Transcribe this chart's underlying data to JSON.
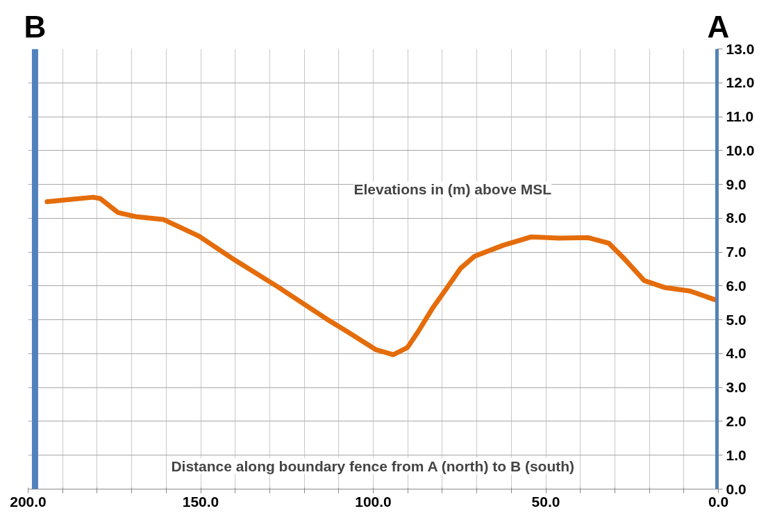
{
  "chart_data": {
    "type": "line",
    "x": [
      194.5,
      181.2,
      179.1,
      174,
      168.9,
      160.7,
      150.5,
      140.2,
      127.9,
      113.6,
      107.5,
      99.3,
      94.2,
      90.1,
      87,
      82.9,
      78.8,
      74.7,
      70.6,
      62.4,
      54.2,
      46.1,
      37.9,
      31.7,
      27.6,
      21.5,
      15.4,
      8.2,
      0
    ],
    "series": [
      {
        "color": "#e46c0a",
        "values": [
          8.49,
          8.62,
          8.58,
          8.17,
          8.05,
          7.96,
          7.47,
          6.77,
          5.99,
          5.03,
          4.65,
          4.12,
          3.97,
          4.18,
          4.65,
          5.33,
          5.92,
          6.52,
          6.88,
          7.2,
          7.45,
          7.41,
          7.43,
          7.26,
          6.84,
          6.16,
          5.95,
          5.85,
          5.56
        ]
      }
    ],
    "xlim": [
      200,
      0
    ],
    "xticks": [
      {
        "value": 200,
        "label": "200.0"
      },
      {
        "value": 190,
        "label": null
      },
      {
        "value": 180,
        "label": null
      },
      {
        "value": 170,
        "label": null
      },
      {
        "value": 160,
        "label": null
      },
      {
        "value": 150,
        "label": "150.0"
      },
      {
        "value": 140,
        "label": null
      },
      {
        "value": 130,
        "label": null
      },
      {
        "value": 120,
        "label": null
      },
      {
        "value": 110,
        "label": null
      },
      {
        "value": 100,
        "label": "100.0"
      },
      {
        "value": 90,
        "label": null
      },
      {
        "value": 80,
        "label": null
      },
      {
        "value": 70,
        "label": null
      },
      {
        "value": 60,
        "label": null
      },
      {
        "value": 50,
        "label": "50.0"
      },
      {
        "value": 40,
        "label": null
      },
      {
        "value": 30,
        "label": null
      },
      {
        "value": 20,
        "label": null
      },
      {
        "value": 10,
        "label": null
      },
      {
        "value": 0,
        "label": "0.0"
      }
    ],
    "ylim": [
      0,
      13
    ],
    "yticks": [
      {
        "value": 0,
        "label": "0.0"
      },
      {
        "value": 1,
        "label": "1.0"
      },
      {
        "value": 2,
        "label": "2.0"
      },
      {
        "value": 3,
        "label": "3.0"
      },
      {
        "value": 4,
        "label": "4.0"
      },
      {
        "value": 5,
        "label": "5.0"
      },
      {
        "value": 6,
        "label": "6.0"
      },
      {
        "value": 7,
        "label": "7.0"
      },
      {
        "value": 8,
        "label": "8.0"
      },
      {
        "value": 9,
        "label": "9.0"
      },
      {
        "value": 10,
        "label": "10.0"
      },
      {
        "value": 11,
        "label": "11.0"
      },
      {
        "value": 12,
        "label": "12.0"
      },
      {
        "value": 13,
        "label": "13.0"
      }
    ],
    "grid": true,
    "line_style": "solid",
    "ref_lines": [
      {
        "axis": "x",
        "value": 198,
        "label": "B",
        "color": "#4f81bd"
      },
      {
        "axis": "x",
        "value": 0,
        "label": "A",
        "color": "#4f81bd"
      }
    ],
    "annotations": [
      "Elevations in (m) above MSL",
      "Distance along boundary fence from A (north) to B (south)"
    ]
  }
}
